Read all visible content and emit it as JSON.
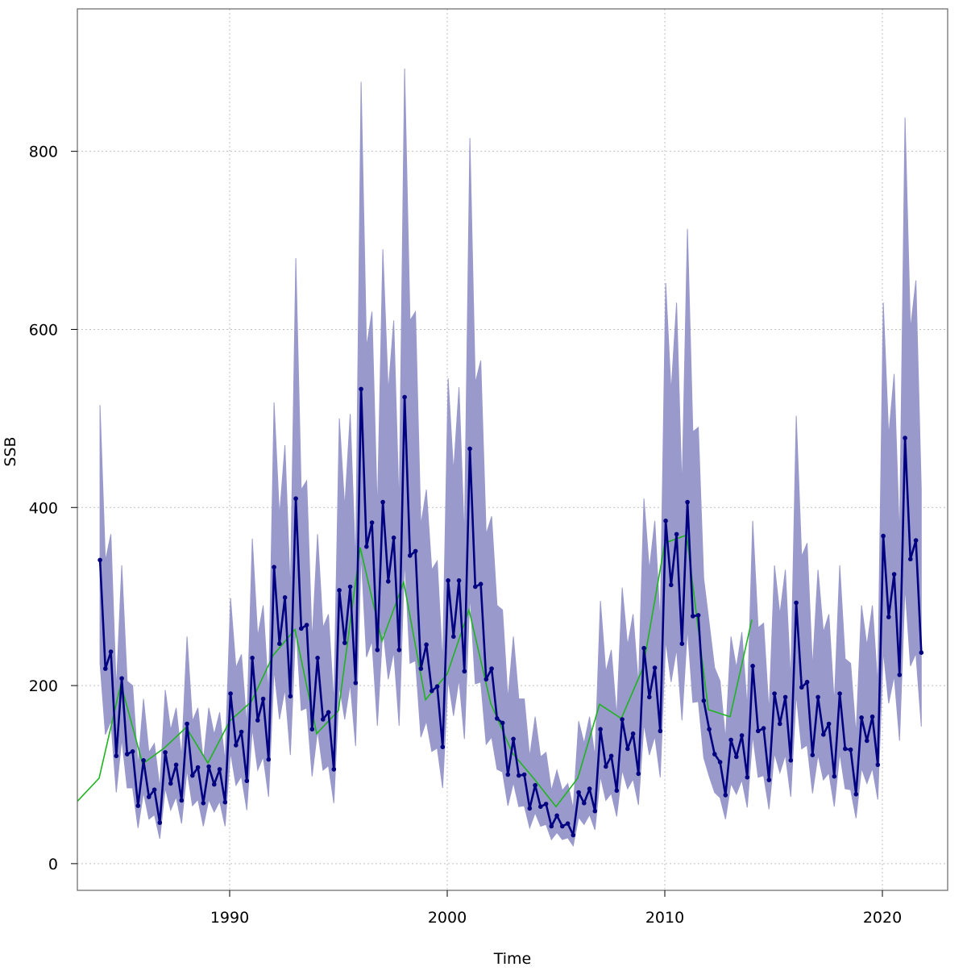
{
  "chart_data": {
    "type": "line",
    "title": "",
    "xlabel": "Time",
    "ylabel": "SSB",
    "xlim": [
      1983.0,
      2023.0
    ],
    "ylim": [
      -30,
      960
    ],
    "x_ticks": [
      1990,
      2000,
      2010,
      2020
    ],
    "y_ticks": [
      0,
      200,
      400,
      600,
      800
    ],
    "grid": true,
    "colors": {
      "band": "#9999cc",
      "estimate": "#000080",
      "survey": "#1eb41e",
      "grid": "#bfbfbf",
      "frame": "#666666"
    },
    "series": [
      {
        "role": "estimate",
        "x": [
          1984.04,
          1984.29,
          1984.54,
          1984.79,
          1985.04,
          1985.29,
          1985.54,
          1985.79,
          1986.04,
          1986.29,
          1986.54,
          1986.79,
          1987.04,
          1987.29,
          1987.54,
          1987.79,
          1988.04,
          1988.29,
          1988.54,
          1988.79,
          1989.04,
          1989.29,
          1989.54,
          1989.79,
          1990.04,
          1990.29,
          1990.54,
          1990.79,
          1991.04,
          1991.29,
          1991.54,
          1991.79,
          1992.04,
          1992.29,
          1992.54,
          1992.79,
          1993.04,
          1993.29,
          1993.54,
          1993.79,
          1994.04,
          1994.29,
          1994.54,
          1994.79,
          1995.04,
          1995.29,
          1995.54,
          1995.79,
          1996.04,
          1996.29,
          1996.54,
          1996.79,
          1997.04,
          1997.29,
          1997.54,
          1997.79,
          1998.04,
          1998.29,
          1998.54,
          1998.79,
          1999.04,
          1999.29,
          1999.54,
          1999.79,
          2000.04,
          2000.29,
          2000.54,
          2000.79,
          2001.04,
          2001.29,
          2001.54,
          2001.79,
          2002.04,
          2002.29,
          2002.54,
          2002.79,
          2003.04,
          2003.29,
          2003.54,
          2003.79,
          2004.04,
          2004.29,
          2004.54,
          2004.79,
          2005.04,
          2005.29,
          2005.54,
          2005.79,
          2006.04,
          2006.29,
          2006.54,
          2006.79,
          2007.04,
          2007.29,
          2007.54,
          2007.79,
          2008.04,
          2008.29,
          2008.54,
          2008.79,
          2009.04,
          2009.29,
          2009.54,
          2009.79,
          2010.04,
          2010.29,
          2010.54,
          2010.79,
          2011.04,
          2011.29,
          2011.54,
          2011.79,
          2012.04,
          2012.29,
          2012.54,
          2012.79,
          2013.04,
          2013.29,
          2013.54,
          2013.79,
          2014.04,
          2014.29,
          2014.54,
          2014.79,
          2015.04,
          2015.29,
          2015.54,
          2015.79,
          2016.04,
          2016.29,
          2016.54,
          2016.79,
          2017.04,
          2017.29,
          2017.54,
          2017.79,
          2018.04,
          2018.29,
          2018.54,
          2018.79,
          2019.04,
          2019.29,
          2019.54,
          2019.79,
          2020.04,
          2020.29,
          2020.54,
          2020.79,
          2021.04,
          2021.29,
          2021.54,
          2021.79
        ],
        "y": [
          341,
          219,
          238,
          121,
          208,
          123,
          126,
          65,
          116,
          75,
          83,
          46,
          125,
          90,
          111,
          71,
          157,
          99,
          108,
          68,
          109,
          89,
          106,
          69,
          191,
          133,
          148,
          93,
          231,
          161,
          185,
          117,
          333,
          247,
          299,
          188,
          410,
          264,
          268,
          151,
          231,
          162,
          170,
          106,
          307,
          248,
          311,
          203,
          533,
          356,
          383,
          240,
          406,
          317,
          366,
          240,
          524,
          346,
          351,
          219,
          246,
          194,
          199,
          131,
          318,
          255,
          318,
          216,
          466,
          311,
          314,
          207,
          219,
          163,
          158,
          100,
          140,
          99,
          100,
          62,
          88,
          64,
          67,
          42,
          54,
          42,
          45,
          32,
          80,
          68,
          84,
          59,
          151,
          109,
          121,
          82,
          162,
          129,
          146,
          101,
          242,
          187,
          220,
          149,
          385,
          313,
          370,
          247,
          406,
          278,
          279,
          183,
          151,
          123,
          114,
          77,
          139,
          120,
          144,
          97,
          222,
          149,
          152,
          94,
          191,
          157,
          187,
          116,
          293,
          198,
          204,
          122,
          187,
          145,
          157,
          98,
          191,
          129,
          128,
          78,
          164,
          138,
          165,
          111,
          368,
          277,
          325,
          212,
          478,
          342,
          363,
          237
        ]
      },
      {
        "role": "survey",
        "x": [
          1983.0,
          1984.0,
          1985.0,
          1986.0,
          1987.0,
          1988.0,
          1989.0,
          1990.0,
          1991.0,
          1992.0,
          1993.0,
          1994.0,
          1995.0,
          1996.0,
          1997.0,
          1998.0,
          1999.0,
          2000.0,
          2001.0,
          2002.0,
          2003.0,
          2004.0,
          2005.0,
          2006.0,
          2007.0,
          2008.0,
          2009.0,
          2010.0,
          2011.0,
          2012.0,
          2013.0,
          2014.0
        ],
        "y": [
          70,
          96,
          202,
          112,
          130,
          153,
          113,
          160,
          182,
          234,
          263,
          146,
          172,
          355,
          250,
          316,
          184,
          213,
          285,
          180,
          124,
          95,
          64,
          96,
          179,
          163,
          220,
          360,
          369,
          173,
          165,
          274
        ]
      }
    ],
    "band": {
      "x": [
        1984.04,
        1984.29,
        1984.54,
        1984.79,
        1985.04,
        1985.29,
        1985.54,
        1985.79,
        1986.04,
        1986.29,
        1986.54,
        1986.79,
        1987.04,
        1987.29,
        1987.54,
        1987.79,
        1988.04,
        1988.29,
        1988.54,
        1988.79,
        1989.04,
        1989.29,
        1989.54,
        1989.79,
        1990.04,
        1990.29,
        1990.54,
        1990.79,
        1991.04,
        1991.29,
        1991.54,
        1991.79,
        1992.04,
        1992.29,
        1992.54,
        1992.79,
        1993.04,
        1993.29,
        1993.54,
        1993.79,
        1994.04,
        1994.29,
        1994.54,
        1994.79,
        1995.04,
        1995.29,
        1995.54,
        1995.79,
        1996.04,
        1996.29,
        1996.54,
        1996.79,
        1997.04,
        1997.29,
        1997.54,
        1997.79,
        1998.04,
        1998.29,
        1998.54,
        1998.79,
        1999.04,
        1999.29,
        1999.54,
        1999.79,
        2000.04,
        2000.29,
        2000.54,
        2000.79,
        2001.04,
        2001.29,
        2001.54,
        2001.79,
        2002.04,
        2002.29,
        2002.54,
        2002.79,
        2003.04,
        2003.29,
        2003.54,
        2003.79,
        2004.04,
        2004.29,
        2004.54,
        2004.79,
        2005.04,
        2005.29,
        2005.54,
        2005.79,
        2006.04,
        2006.29,
        2006.54,
        2006.79,
        2007.04,
        2007.29,
        2007.54,
        2007.79,
        2008.04,
        2008.29,
        2008.54,
        2008.79,
        2009.04,
        2009.29,
        2009.54,
        2009.79,
        2010.04,
        2010.29,
        2010.54,
        2010.79,
        2011.04,
        2011.29,
        2011.54,
        2011.79,
        2012.04,
        2012.29,
        2012.54,
        2012.79,
        2013.04,
        2013.29,
        2013.54,
        2013.79,
        2014.04,
        2014.29,
        2014.54,
        2014.79,
        2015.04,
        2015.29,
        2015.54,
        2015.79,
        2016.04,
        2016.29,
        2016.54,
        2016.79,
        2017.04,
        2017.29,
        2017.54,
        2017.79,
        2018.04,
        2018.29,
        2018.54,
        2018.79,
        2019.04,
        2019.29,
        2019.54,
        2019.79,
        2020.04,
        2020.29,
        2020.54,
        2020.79,
        2021.04,
        2021.29,
        2021.54,
        2021.79
      ],
      "upper": [
        515,
        340,
        370,
        195,
        335,
        205,
        200,
        110,
        185,
        125,
        135,
        85,
        195,
        150,
        175,
        120,
        255,
        160,
        175,
        115,
        175,
        145,
        170,
        115,
        298,
        220,
        235,
        155,
        365,
        255,
        290,
        190,
        518,
        390,
        470,
        305,
        680,
        420,
        430,
        250,
        370,
        265,
        280,
        180,
        500,
        400,
        505,
        335,
        878,
        580,
        620,
        395,
        690,
        530,
        610,
        400,
        893,
        610,
        620,
        380,
        420,
        330,
        340,
        225,
        545,
        440,
        535,
        365,
        815,
        540,
        565,
        370,
        390,
        290,
        285,
        185,
        255,
        185,
        185,
        120,
        165,
        120,
        125,
        82,
        105,
        82,
        90,
        62,
        160,
        135,
        165,
        120,
        295,
        215,
        240,
        165,
        310,
        245,
        280,
        200,
        410,
        330,
        385,
        270,
        652,
        530,
        630,
        420,
        713,
        485,
        490,
        320,
        270,
        220,
        205,
        140,
        255,
        220,
        260,
        175,
        385,
        265,
        270,
        170,
        335,
        280,
        330,
        205,
        503,
        345,
        360,
        220,
        330,
        260,
        280,
        180,
        335,
        230,
        225,
        145,
        290,
        245,
        290,
        200,
        630,
        480,
        550,
        365,
        838,
        600,
        655,
        420
      ],
      "lower": [
        225,
        145,
        160,
        80,
        140,
        85,
        85,
        40,
        80,
        50,
        55,
        28,
        85,
        60,
        75,
        45,
        105,
        65,
        72,
        42,
        72,
        58,
        70,
        42,
        125,
        88,
        98,
        60,
        152,
        105,
        120,
        75,
        218,
        162,
        196,
        122,
        268,
        172,
        175,
        98,
        150,
        105,
        110,
        68,
        200,
        162,
        202,
        132,
        348,
        232,
        250,
        155,
        265,
        207,
        238,
        155,
        341,
        225,
        228,
        142,
        160,
        126,
        130,
        85,
        207,
        166,
        207,
        140,
        302,
        202,
        204,
        134,
        142,
        106,
        103,
        65,
        91,
        64,
        65,
        40,
        57,
        42,
        44,
        27,
        35,
        27,
        29,
        20,
        52,
        44,
        55,
        38,
        98,
        71,
        79,
        53,
        105,
        84,
        95,
        66,
        157,
        122,
        143,
        97,
        251,
        204,
        241,
        161,
        264,
        181,
        182,
        119,
        98,
        80,
        74,
        50,
        90,
        78,
        94,
        63,
        144,
        97,
        99,
        61,
        124,
        102,
        122,
        75,
        190,
        129,
        133,
        79,
        122,
        94,
        102,
        64,
        124,
        84,
        83,
        51,
        107,
        90,
        107,
        72,
        239,
        180,
        211,
        138,
        311,
        222,
        236,
        154
      ]
    }
  }
}
